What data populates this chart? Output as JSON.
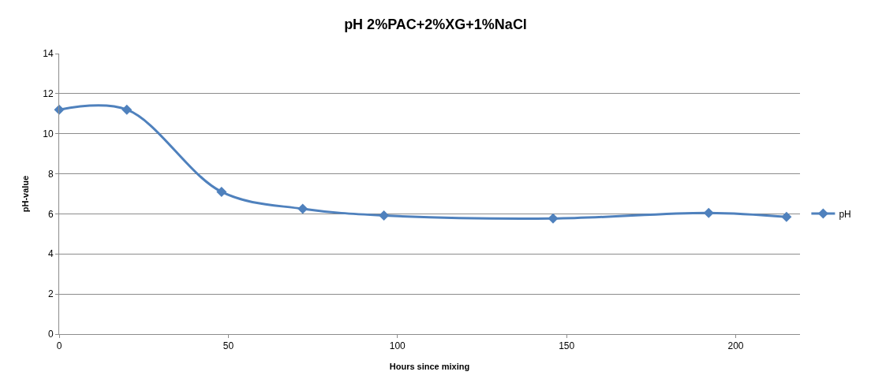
{
  "chart_data": {
    "type": "line",
    "title": "pH 2%PAC+2%XG+1%NaCl",
    "xlabel": "Hours since mixing",
    "ylabel": "pH-value",
    "x": [
      0,
      20,
      48,
      72,
      96,
      146,
      192,
      215
    ],
    "series": [
      {
        "name": "pH",
        "color": "#4f81bd",
        "values": [
          11.2,
          11.2,
          7.1,
          6.25,
          5.92,
          5.77,
          6.05,
          5.85
        ]
      }
    ],
    "xlim": [
      0,
      219
    ],
    "xticks": [
      0,
      50,
      100,
      150,
      200
    ],
    "ylim": [
      0,
      14
    ],
    "yticks": [
      0,
      2,
      4,
      6,
      8,
      10,
      12,
      14
    ],
    "grid": "y",
    "legend": "right",
    "marker": "diamond",
    "line_style": "solid"
  }
}
